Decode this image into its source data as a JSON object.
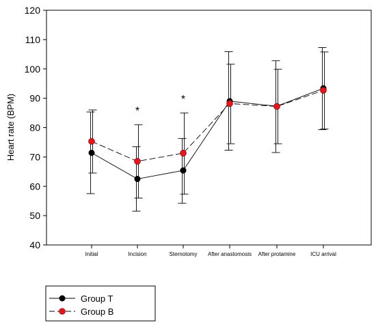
{
  "chart_data": {
    "type": "line",
    "title": "",
    "xlabel": "",
    "ylabel": "Heart rate (BPM)",
    "ylim": [
      40,
      120
    ],
    "yticks": [
      40,
      50,
      60,
      70,
      80,
      90,
      100,
      110,
      120
    ],
    "categories": [
      "Initial",
      "Incision",
      "Sternotomy",
      "After anastomosis",
      "After protamine",
      "ICU arrival"
    ],
    "series": [
      {
        "name": "Group T",
        "values": [
          71.4,
          62.5,
          65.4,
          89.0,
          87.3,
          93.4
        ],
        "error_low": [
          57.5,
          51.5,
          54.2,
          72.3,
          71.5,
          79.3
        ],
        "error_high": [
          85.3,
          73.5,
          76.3,
          105.9,
          102.8,
          107.3
        ],
        "marker_color": "#000000",
        "line_style": "solid"
      },
      {
        "name": "Group B",
        "values": [
          75.3,
          68.5,
          71.3,
          88.2,
          87.2,
          92.7
        ],
        "error_low": [
          64.5,
          56.0,
          57.3,
          74.5,
          74.5,
          79.5
        ],
        "error_high": [
          86.0,
          81.0,
          85.0,
          101.6,
          99.9,
          105.8
        ],
        "marker_color": "#e8141c",
        "line_style": "dashed"
      }
    ],
    "annotations": [
      {
        "category": "Incision",
        "value": 84.5,
        "text": "*"
      },
      {
        "category": "Sternotomy",
        "value": 88.5,
        "text": "*"
      }
    ],
    "grid": false,
    "legend_position": "bottom-left"
  }
}
